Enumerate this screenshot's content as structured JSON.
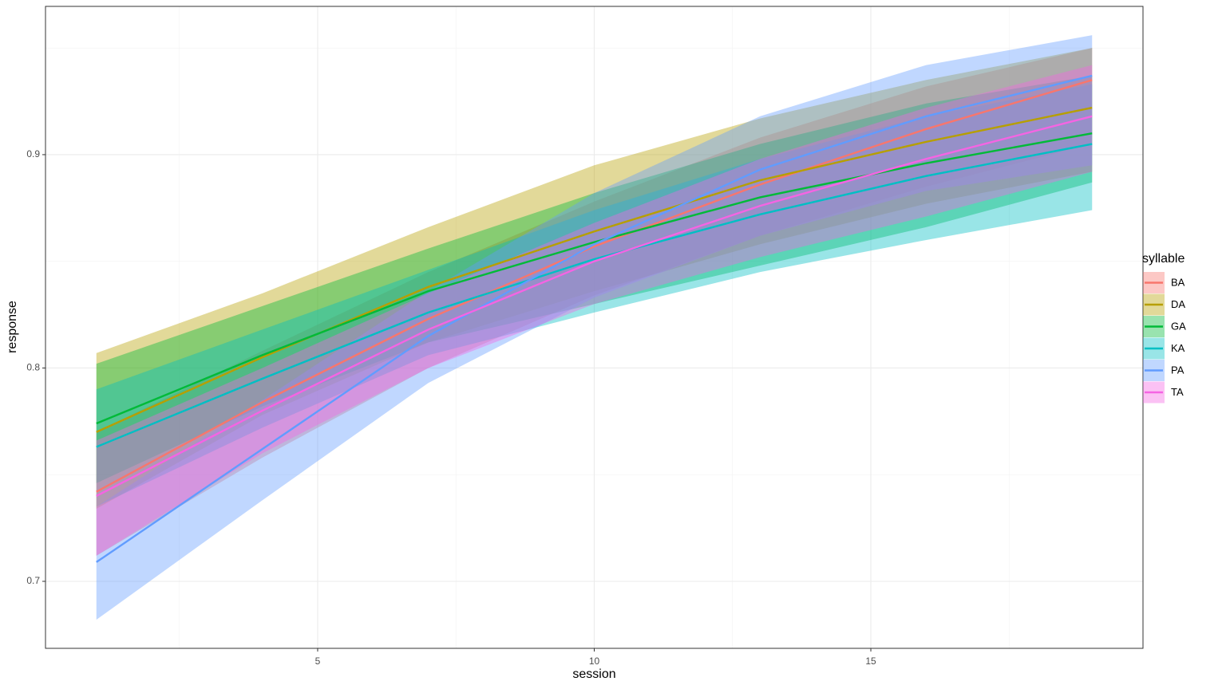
{
  "chart_data": {
    "type": "ribbon-line",
    "x_label": "session",
    "y_label": "response",
    "legend_title": "syllable",
    "x": [
      1,
      4,
      7,
      10,
      13,
      16,
      19
    ],
    "xlim": [
      0.08,
      19.92
    ],
    "xticks": [
      5,
      10,
      15
    ],
    "ylim": [
      0.6686,
      0.9695
    ],
    "yticks": [
      0.7,
      0.8,
      0.9
    ],
    "grid": true,
    "legend": "right",
    "series": [
      {
        "name": "BA",
        "color": "#F8766D",
        "values": [
          0.742,
          0.784,
          0.823,
          0.857,
          0.886,
          0.912,
          0.935
        ],
        "lower": [
          0.712,
          0.758,
          0.8,
          0.834,
          0.862,
          0.885,
          0.905
        ],
        "upper": [
          0.77,
          0.808,
          0.845,
          0.878,
          0.908,
          0.932,
          0.95
        ]
      },
      {
        "name": "DA",
        "color": "#B79F00",
        "values": [
          0.77,
          0.805,
          0.838,
          0.864,
          0.888,
          0.906,
          0.922
        ],
        "lower": [
          0.734,
          0.778,
          0.812,
          0.836,
          0.858,
          0.877,
          0.892
        ],
        "upper": [
          0.807,
          0.835,
          0.866,
          0.895,
          0.917,
          0.935,
          0.95
        ]
      },
      {
        "name": "GA",
        "color": "#00BA38",
        "values": [
          0.774,
          0.806,
          0.836,
          0.859,
          0.88,
          0.896,
          0.91
        ],
        "lower": [
          0.746,
          0.782,
          0.812,
          0.83,
          0.848,
          0.866,
          0.887
        ],
        "upper": [
          0.802,
          0.829,
          0.856,
          0.882,
          0.905,
          0.924,
          0.937
        ]
      },
      {
        "name": "KA",
        "color": "#00BFC4",
        "values": [
          0.763,
          0.795,
          0.826,
          0.851,
          0.872,
          0.89,
          0.905
        ],
        "lower": [
          0.735,
          0.772,
          0.806,
          0.826,
          0.845,
          0.86,
          0.874
        ],
        "upper": [
          0.79,
          0.818,
          0.846,
          0.874,
          0.898,
          0.918,
          0.933
        ]
      },
      {
        "name": "PA",
        "color": "#619CFF",
        "values": [
          0.709,
          0.762,
          0.815,
          0.858,
          0.893,
          0.918,
          0.937
        ],
        "lower": [
          0.682,
          0.738,
          0.793,
          0.833,
          0.862,
          0.883,
          0.895
        ],
        "upper": [
          0.735,
          0.785,
          0.836,
          0.882,
          0.918,
          0.942,
          0.956
        ]
      },
      {
        "name": "TA",
        "color": "#F564E3",
        "values": [
          0.74,
          0.78,
          0.818,
          0.85,
          0.876,
          0.898,
          0.918
        ],
        "lower": [
          0.712,
          0.76,
          0.8,
          0.83,
          0.852,
          0.871,
          0.892
        ],
        "upper": [
          0.766,
          0.8,
          0.835,
          0.868,
          0.898,
          0.922,
          0.942
        ]
      }
    ]
  }
}
